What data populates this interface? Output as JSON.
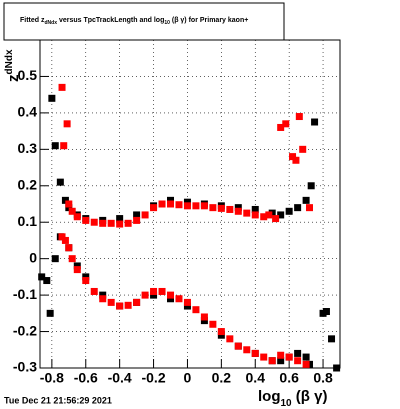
{
  "chart_data": {
    "type": "scatter",
    "title": [
      "Fitted  z",
      "dNdx",
      "  versus TpcTrackLength and log",
      "10",
      " (β γ) for Primary kaon+"
    ],
    "y_label": [
      "z",
      "dNdx"
    ],
    "x_label": [
      "log",
      "10",
      " (β γ)"
    ],
    "footer": "Tue Dec 21 21:56:29 2021",
    "xlim": [
      -0.87,
      0.9
    ],
    "ylim": [
      -0.3,
      0.6
    ],
    "xticks": [
      -0.8,
      -0.6,
      -0.4,
      -0.2,
      0,
      0.2,
      0.4,
      0.6,
      0.8
    ],
    "yticks": [
      -0.3,
      -0.2,
      -0.1,
      0,
      0.1,
      0.2,
      0.3,
      0.4,
      0.5
    ],
    "grid": true,
    "series": [
      {
        "color": "#000000",
        "x": [
          -0.8,
          -0.78,
          -0.75,
          -0.72,
          -0.7,
          -0.65,
          -0.6,
          -0.5,
          -0.4,
          -0.3,
          -0.2,
          -0.1,
          0,
          0.1,
          0.2,
          0.3,
          0.4,
          0.5,
          0.55,
          0.6,
          0.65,
          0.7,
          0.73,
          0.75,
          -0.86,
          -0.83,
          -0.81,
          -0.78,
          -0.75,
          -0.7,
          -0.65,
          -0.6,
          -0.5,
          -0.4,
          -0.3,
          -0.2,
          -0.1,
          0,
          0.1,
          0.2,
          0.3,
          0.4,
          0.5,
          0.55,
          0.6,
          0.65,
          0.7,
          0.72,
          0.8,
          0.82,
          0.85,
          0.88
        ],
        "values": [
          0.44,
          0.31,
          0.21,
          0.16,
          0.14,
          0.12,
          0.11,
          0.105,
          0.11,
          0.12,
          0.145,
          0.16,
          0.155,
          0.15,
          0.145,
          0.14,
          0.135,
          0.125,
          0.12,
          0.13,
          0.14,
          0.16,
          0.2,
          0.375,
          -0.05,
          -0.06,
          -0.15,
          0.0,
          0.06,
          0.03,
          -0.02,
          -0.05,
          -0.1,
          -0.13,
          -0.12,
          -0.1,
          -0.11,
          -0.13,
          -0.17,
          -0.21,
          -0.24,
          -0.26,
          -0.28,
          -0.28,
          -0.27,
          -0.26,
          -0.27,
          -0.29,
          -0.15,
          -0.145,
          -0.22,
          -0.3
        ]
      },
      {
        "color": "#ff0000",
        "x": [
          -0.74,
          -0.71,
          -0.73,
          -0.7,
          -0.68,
          -0.65,
          -0.6,
          -0.55,
          -0.5,
          -0.45,
          -0.4,
          -0.35,
          -0.3,
          -0.25,
          -0.2,
          -0.15,
          -0.1,
          -0.05,
          0,
          0.05,
          0.1,
          0.15,
          0.2,
          0.25,
          0.3,
          0.35,
          0.4,
          0.45,
          0.48,
          0.52,
          0.55,
          0.58,
          0.62,
          0.64,
          0.66,
          0.68,
          0.72,
          -0.74,
          -0.72,
          -0.7,
          -0.68,
          -0.65,
          -0.6,
          -0.55,
          -0.5,
          -0.45,
          -0.4,
          -0.35,
          -0.3,
          -0.25,
          -0.2,
          -0.15,
          -0.1,
          -0.05,
          0,
          0.05,
          0.1,
          0.15,
          0.2,
          0.25,
          0.3,
          0.35,
          0.4,
          0.45,
          0.5,
          0.55,
          0.6,
          0.65,
          0.7
        ],
        "values": [
          0.47,
          0.37,
          0.31,
          0.15,
          0.13,
          0.115,
          0.105,
          0.1,
          0.097,
          0.097,
          0.095,
          0.097,
          0.105,
          0.12,
          0.14,
          0.15,
          0.15,
          0.148,
          0.145,
          0.145,
          0.145,
          0.14,
          0.138,
          0.135,
          0.13,
          0.125,
          0.12,
          0.115,
          0.12,
          0.11,
          0.36,
          0.37,
          0.28,
          0.27,
          0.39,
          0.3,
          0.14,
          0.06,
          0.05,
          0.03,
          0.0,
          -0.03,
          -0.06,
          -0.09,
          -0.11,
          -0.12,
          -0.13,
          -0.128,
          -0.12,
          -0.1,
          -0.09,
          -0.09,
          -0.1,
          -0.11,
          -0.12,
          -0.14,
          -0.16,
          -0.18,
          -0.2,
          -0.22,
          -0.24,
          -0.25,
          -0.26,
          -0.27,
          -0.28,
          -0.265,
          -0.27,
          -0.28,
          -0.29
        ]
      }
    ]
  }
}
